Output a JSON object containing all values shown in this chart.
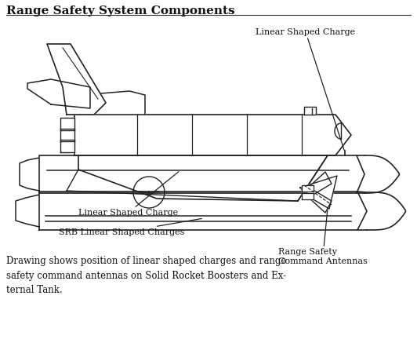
{
  "title": "Range Safety System Components",
  "caption": "Drawing shows position of linear shaped charges and range\nsafety command antennas on Solid Rocket Boosters and Ex-\nternal Tank.",
  "label_lsc_top": "Linear Shaped Charge",
  "label_lsc_left": "Linear Shaped Charge",
  "label_srb": "SRB Linear Shaped Charges",
  "label_rsa": "Range Safety\nCommand Antennas",
  "bg_color": "#ffffff",
  "line_color": "#222222",
  "text_color": "#111111"
}
